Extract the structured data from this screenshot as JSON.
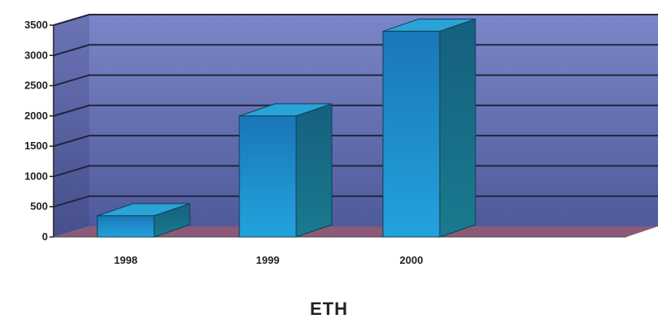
{
  "chart_data": {
    "type": "bar",
    "title": "ETH",
    "xlabel": "",
    "ylabel": "",
    "categories": [
      "1998",
      "1999",
      "2000"
    ],
    "values": [
      350,
      2000,
      3400
    ],
    "ylim": [
      0,
      3500
    ],
    "yticks": [
      0,
      500,
      1000,
      1500,
      2000,
      2500,
      3000,
      3500
    ],
    "grid": true,
    "three_d": true,
    "legend": "none",
    "colors": {
      "bar_front": "#1e86c4",
      "bar_top": "#2aa3d6",
      "bar_side": "#136b8e",
      "back_wall": "#6a76b8",
      "side_wall": "#5a63a3",
      "floor": "#8c5a78",
      "gridline": "#22243a"
    }
  }
}
